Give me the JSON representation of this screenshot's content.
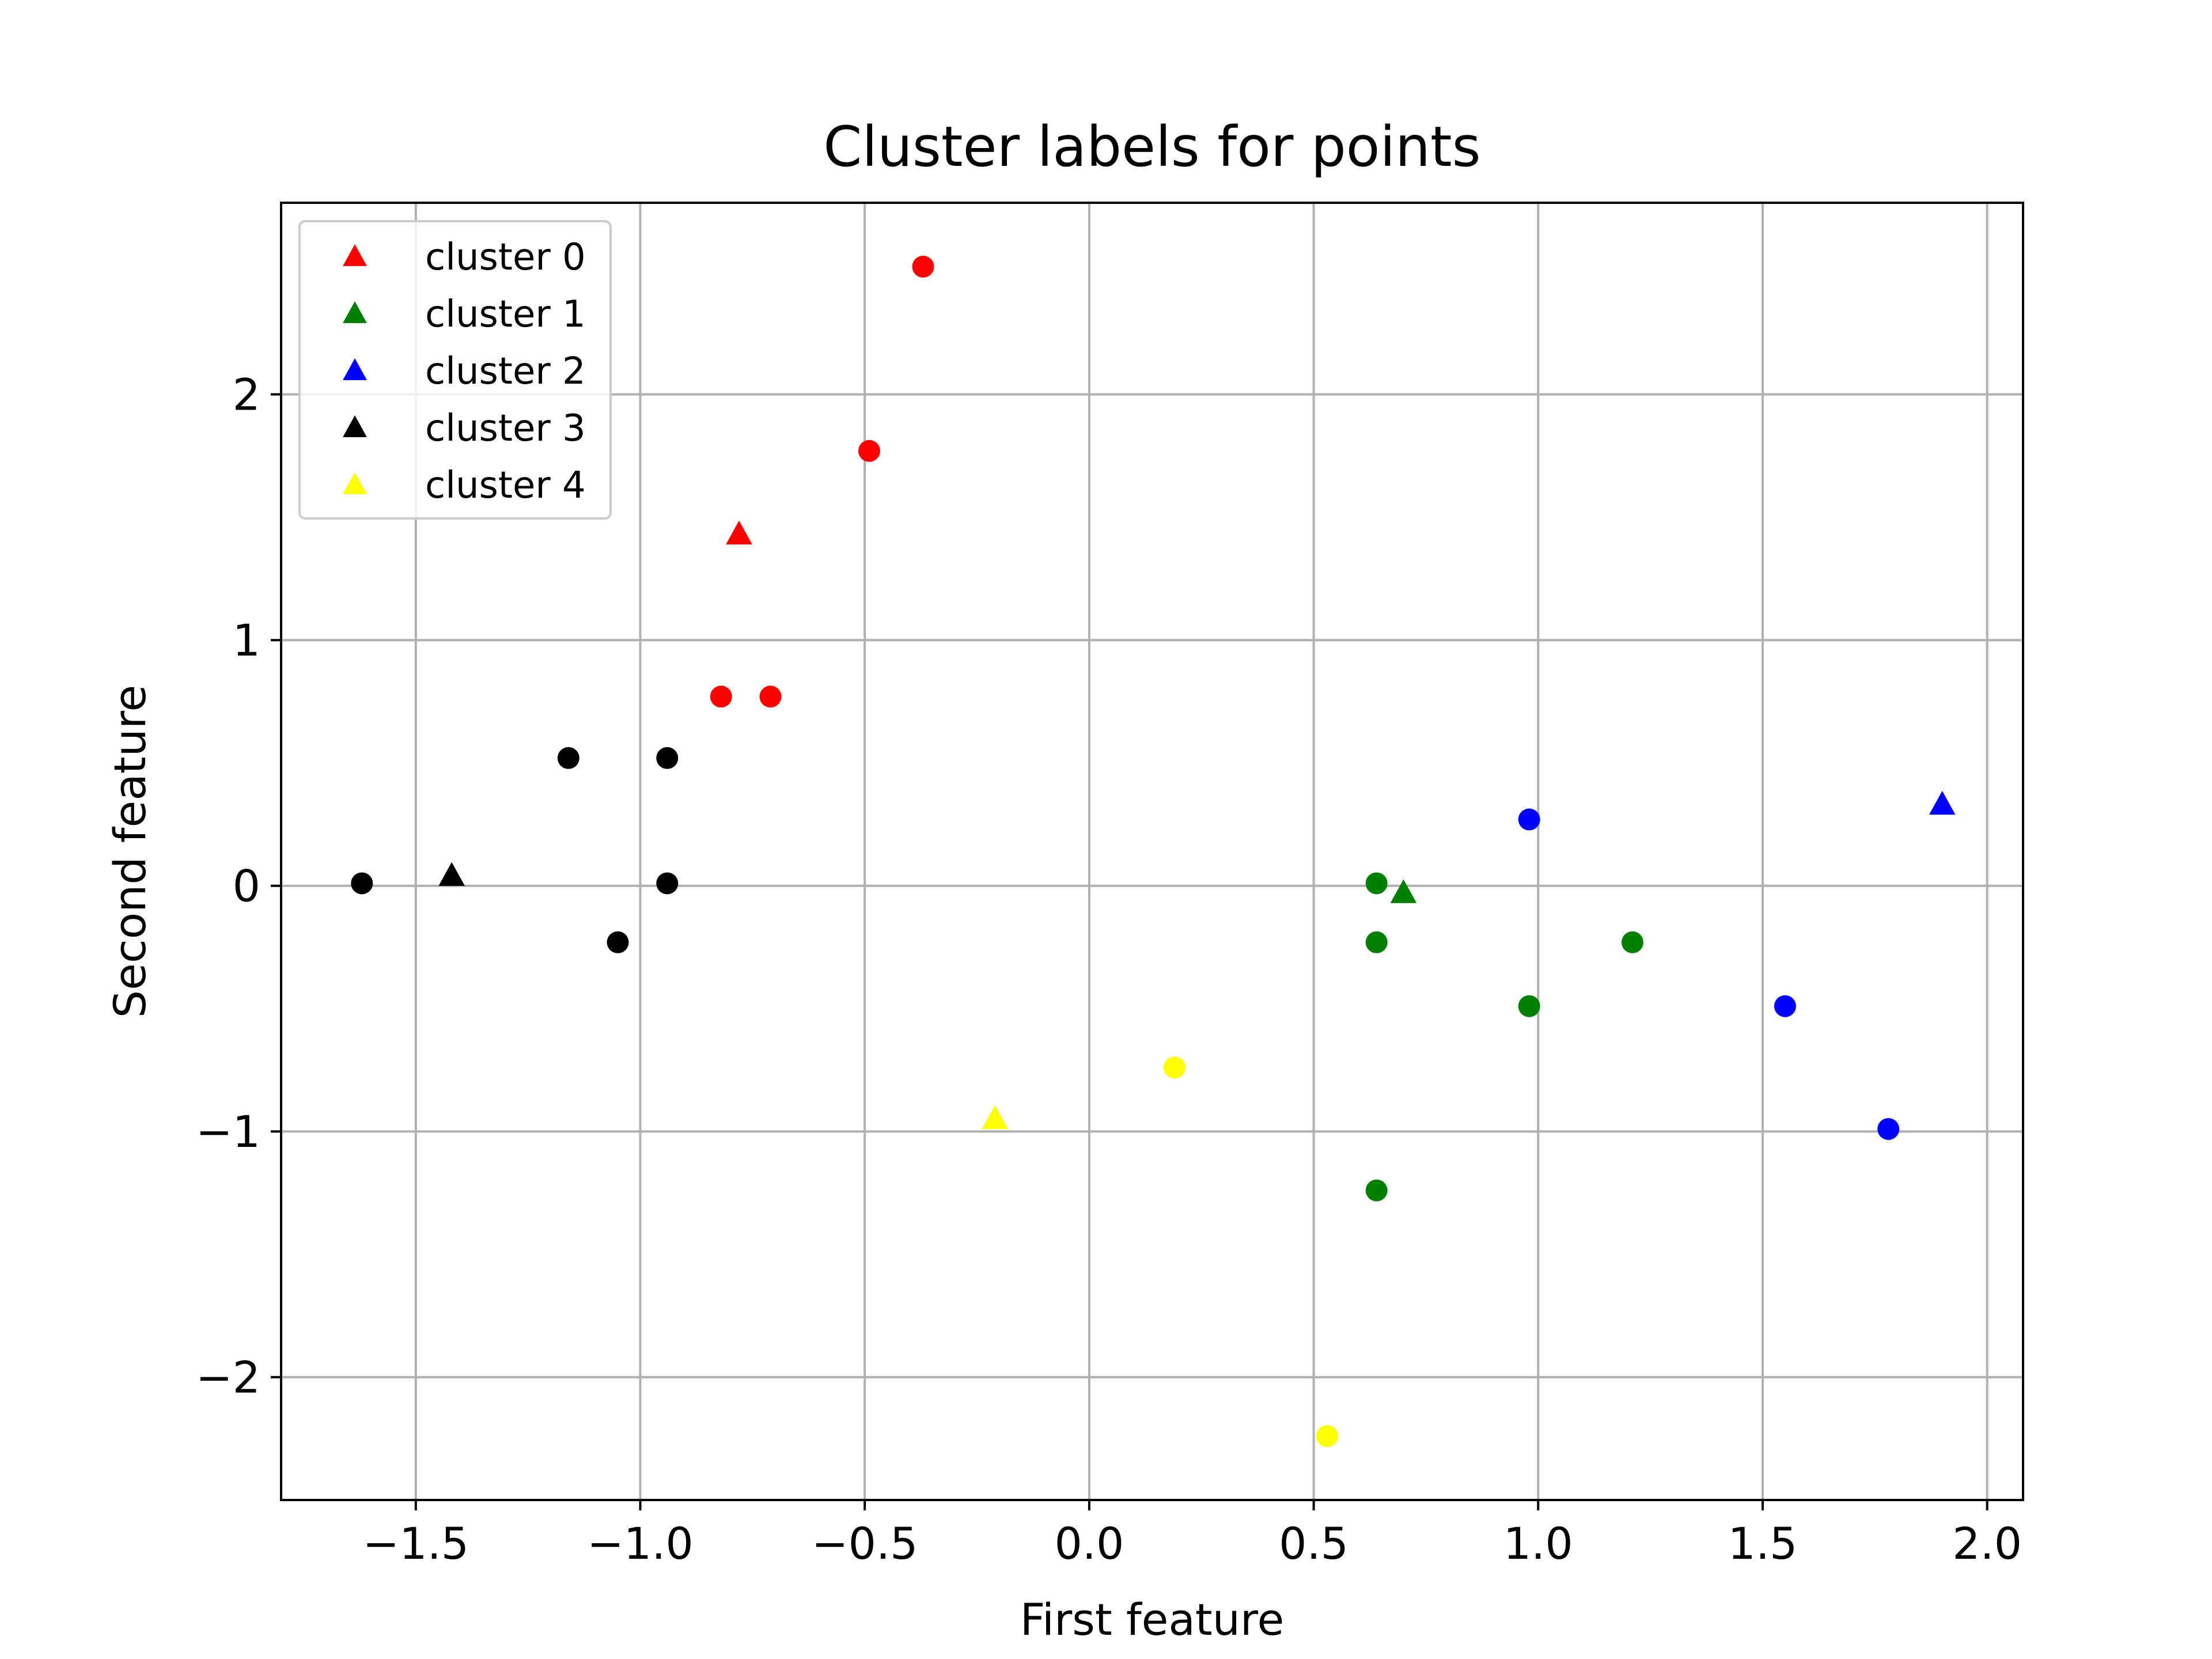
{
  "chart_data": {
    "type": "scatter",
    "title": "Cluster labels for points",
    "xlabel": "First feature",
    "ylabel": "Second feature",
    "xlim": [
      -1.8,
      2.08
    ],
    "ylim": [
      -2.5,
      2.78
    ],
    "xticks": [
      -1.5,
      -1.0,
      -0.5,
      0.0,
      0.5,
      1.0,
      1.5,
      2.0
    ],
    "xtick_labels": [
      "−1.5",
      "−1.0",
      "−0.5",
      "0.0",
      "0.5",
      "1.0",
      "1.5",
      "2.0"
    ],
    "yticks": [
      -2,
      -1,
      0,
      1,
      2
    ],
    "ytick_labels": [
      "−2",
      "−1",
      "0",
      "1",
      "2"
    ],
    "grid": true,
    "legend_position": "top-left",
    "series": [
      {
        "name": "cluster 0",
        "color": "#ff0000",
        "points": [
          [
            -0.37,
            2.52
          ],
          [
            -0.49,
            1.77
          ],
          [
            -0.82,
            0.77
          ],
          [
            -0.71,
            0.77
          ]
        ],
        "centers": [
          [
            -0.78,
            1.43
          ]
        ]
      },
      {
        "name": "cluster 1",
        "color": "#008000",
        "points": [
          [
            0.64,
            0.01
          ],
          [
            0.64,
            -0.23
          ],
          [
            1.21,
            -0.23
          ],
          [
            0.98,
            -0.49
          ],
          [
            0.64,
            -1.24
          ]
        ],
        "centers": [
          [
            0.7,
            -0.03
          ]
        ]
      },
      {
        "name": "cluster 2",
        "color": "#0000ff",
        "points": [
          [
            0.98,
            0.27
          ],
          [
            1.55,
            -0.49
          ],
          [
            1.78,
            -0.99
          ]
        ],
        "centers": [
          [
            1.9,
            0.33
          ]
        ]
      },
      {
        "name": "cluster 3",
        "color": "#000000",
        "points": [
          [
            -1.62,
            0.01
          ],
          [
            -1.16,
            0.52
          ],
          [
            -0.94,
            0.52
          ],
          [
            -0.94,
            0.01
          ],
          [
            -1.05,
            -0.23
          ]
        ],
        "centers": [
          [
            -1.42,
            0.04
          ]
        ]
      },
      {
        "name": "cluster 4",
        "color": "#ffff00",
        "points": [
          [
            0.19,
            -0.74
          ],
          [
            0.53,
            -2.24
          ]
        ],
        "centers": [
          [
            -0.21,
            -0.95
          ]
        ]
      }
    ]
  }
}
